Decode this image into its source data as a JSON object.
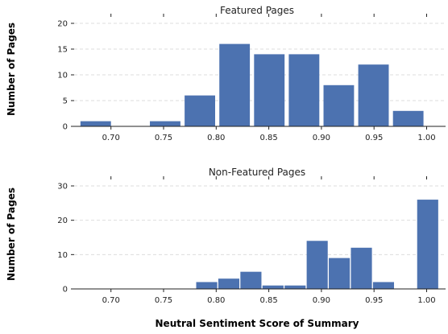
{
  "colors": {
    "bar": "#4c72b0",
    "axis": "#222222",
    "grid": "#dddddd"
  },
  "xlabel": "Neutral Sentiment Score of Summary",
  "chart_data": [
    {
      "type": "bar",
      "title": "Featured Pages",
      "ylabel": "Number of Pages",
      "xlim": [
        0.665,
        1.018
      ],
      "ylim": [
        0,
        20
      ],
      "xticks": [
        0.7,
        0.75,
        0.8,
        0.85,
        0.9,
        0.95,
        1.0
      ],
      "xtick_labels": [
        "0.70",
        "0.75",
        "0.80",
        "0.85",
        "0.90",
        "0.95",
        "1.00"
      ],
      "yticks": [
        0,
        5,
        10,
        15,
        20
      ],
      "ytick_labels": [
        "0",
        "5",
        "10",
        "15",
        "20"
      ],
      "grid": "horizontal dashed",
      "bars": [
        {
          "x0": 0.671,
          "x1": 0.7,
          "value": 1
        },
        {
          "x0": 0.704,
          "x1": 0.733,
          "value": 0
        },
        {
          "x0": 0.737,
          "x1": 0.766,
          "value": 1
        },
        {
          "x0": 0.77,
          "x1": 0.799,
          "value": 6
        },
        {
          "x0": 0.803,
          "x1": 0.832,
          "value": 16
        },
        {
          "x0": 0.836,
          "x1": 0.865,
          "value": 14
        },
        {
          "x0": 0.869,
          "x1": 0.898,
          "value": 14
        },
        {
          "x0": 0.902,
          "x1": 0.931,
          "value": 8
        },
        {
          "x0": 0.935,
          "x1": 0.964,
          "value": 12
        },
        {
          "x0": 0.968,
          "x1": 0.997,
          "value": 3
        }
      ]
    },
    {
      "type": "bar",
      "title": "Non-Featured Pages",
      "ylabel": "Number of Pages",
      "xlim": [
        0.665,
        1.018
      ],
      "ylim": [
        0,
        30
      ],
      "xticks": [
        0.7,
        0.75,
        0.8,
        0.85,
        0.9,
        0.95,
        1.0
      ],
      "xtick_labels": [
        "0.70",
        "0.75",
        "0.80",
        "0.85",
        "0.90",
        "0.95",
        "1.00"
      ],
      "yticks": [
        0,
        10,
        20,
        30
      ],
      "ytick_labels": [
        "0",
        "10",
        "20",
        "30"
      ],
      "grid": "horizontal dashed",
      "bars": [
        {
          "x0": 0.781,
          "x1": 0.801,
          "value": 2
        },
        {
          "x0": 0.802,
          "x1": 0.822,
          "value": 3
        },
        {
          "x0": 0.823,
          "x1": 0.843,
          "value": 5
        },
        {
          "x0": 0.844,
          "x1": 0.864,
          "value": 1
        },
        {
          "x0": 0.865,
          "x1": 0.885,
          "value": 1
        },
        {
          "x0": 0.886,
          "x1": 0.906,
          "value": 14
        },
        {
          "x0": 0.907,
          "x1": 0.927,
          "value": 9
        },
        {
          "x0": 0.928,
          "x1": 0.948,
          "value": 12
        },
        {
          "x0": 0.949,
          "x1": 0.969,
          "value": 2
        },
        {
          "x0": 0.97,
          "x1": 0.99,
          "value": 0
        },
        {
          "x0": 0.991,
          "x1": 1.011,
          "value": 26
        }
      ]
    }
  ]
}
